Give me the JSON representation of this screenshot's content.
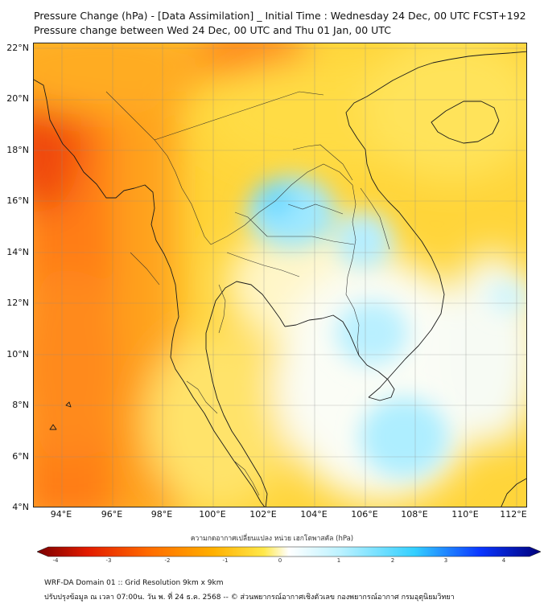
{
  "title": {
    "line1": "Pressure Change (hPa) - [Data Assimilation] _ Initial Time : Wednesday 24 Dec, 00 UTC FCST+192",
    "line2": "Pressure change between Wed 24 Dec, 00 UTC and Thu 01 Jan, 00 UTC"
  },
  "map": {
    "lat_labels": [
      "22°N",
      "20°N",
      "18°N",
      "16°N",
      "14°N",
      "12°N",
      "10°N",
      "8°N",
      "6°N",
      "4°N"
    ],
    "lon_labels": [
      "94°E",
      "96°E",
      "98°E",
      "100°E",
      "102°E",
      "104°E",
      "106°E",
      "108°E",
      "110°E",
      "112°E"
    ],
    "extent": {
      "lon_min": 93.0,
      "lon_max": 112.4,
      "lat_min": 4.0,
      "lat_max": 22.2
    }
  },
  "colorbar": {
    "label": "ความกดอากาศเปลี่ยนแปลง หน่วย เฮกโตพาสคัล (hPa)",
    "ticks": [
      "-4",
      "-3",
      "-2",
      "-1",
      "0",
      "1",
      "2",
      "3",
      "4"
    ],
    "range": [
      -4,
      4
    ],
    "colors": [
      "#7a0000",
      "#e21b00",
      "#ff6a00",
      "#ffb000",
      "#ffe84a",
      "#ffffff",
      "#bdf2ff",
      "#33cfff",
      "#0a36ff",
      "#00007a"
    ]
  },
  "footer": {
    "line1": "WRF-DA Domain 01 :: Grid Resolution 9km x 9km",
    "line2": "ปรับปรุงข้อมูล ณ เวลา 07:00น. วัน พ. ที่ 24 ธ.ค. 2568 -- © ส่วนพยากรณ์อากาศเชิงตัวเลข กองพยากรณ์อากาศ กรมอุตุนิยมวิทยา"
  }
}
